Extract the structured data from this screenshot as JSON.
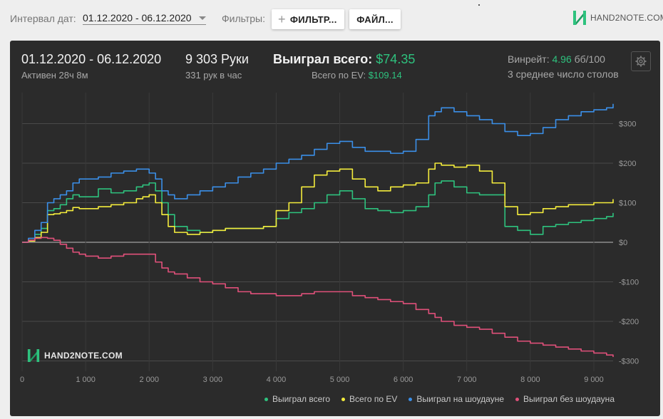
{
  "header": {
    "date_range_label": "Интервал дат:",
    "date_range_value": "01.12.2020 - 06.12.2020",
    "filters_label": "Фильтры:",
    "filter_button": "ФИЛЬТР...",
    "file_button": "ФАЙЛ...",
    "logo_text": "HAND2NOTE.COM"
  },
  "summary": {
    "date_range": "01.12.2020 - 06.12.2020",
    "active": "Активен 28ч 8м",
    "hands": "9 303 Руки",
    "hands_per_hour": "331 рук в час",
    "won_total_label": "Выиграл всего:",
    "won_total_value": "$74.35",
    "ev_label": "Всего по EV:",
    "ev_value": "$109.14",
    "winrate_label": "Винрейт:",
    "winrate_value": "4.96",
    "winrate_unit": "бб/100",
    "tables": "3 среднее число столов"
  },
  "watermark": "HAND2NOTE.COM",
  "chart_data": {
    "type": "line",
    "xlabel": "",
    "ylabel": "",
    "xlim": [
      0,
      9303
    ],
    "ylim": [
      -300,
      350
    ],
    "x_ticks": [
      0,
      1000,
      2000,
      3000,
      4000,
      5000,
      6000,
      7000,
      8000,
      9000
    ],
    "x_tick_labels": [
      "0",
      "1 000",
      "2 000",
      "3 000",
      "4 000",
      "5 000",
      "6 000",
      "7 000",
      "8 000",
      "9 000"
    ],
    "y_ticks": [
      300,
      200,
      100,
      0,
      -100,
      -200,
      -300
    ],
    "y_tick_labels": [
      "$300",
      "$200",
      "$100",
      "$0",
      "-$100",
      "-$200",
      "-$300"
    ],
    "legend_position": "bottom-right",
    "grid": true,
    "x": [
      0,
      100,
      200,
      300,
      400,
      500,
      600,
      700,
      800,
      900,
      1000,
      1200,
      1400,
      1600,
      1800,
      1900,
      2000,
      2100,
      2200,
      2300,
      2400,
      2600,
      2800,
      3000,
      3200,
      3400,
      3600,
      3800,
      4000,
      4200,
      4400,
      4600,
      4800,
      5000,
      5200,
      5400,
      5600,
      5800,
      6000,
      6200,
      6400,
      6500,
      6600,
      6800,
      7000,
      7200,
      7400,
      7600,
      7800,
      8000,
      8200,
      8400,
      8600,
      8800,
      9000,
      9200,
      9303
    ],
    "series": [
      {
        "name": "Выиграл всего",
        "color": "#2ec27e",
        "values": [
          0,
          5,
          20,
          35,
          80,
          85,
          95,
          110,
          120,
          115,
          115,
          135,
          125,
          130,
          140,
          145,
          150,
          130,
          100,
          70,
          40,
          30,
          25,
          30,
          35,
          35,
          35,
          40,
          60,
          75,
          85,
          100,
          120,
          130,
          110,
          85,
          80,
          75,
          80,
          90,
          120,
          150,
          155,
          140,
          125,
          120,
          120,
          40,
          30,
          20,
          40,
          45,
          50,
          55,
          60,
          65,
          74
        ]
      },
      {
        "name": "Всего по EV",
        "color": "#f4ec3c",
        "values": [
          0,
          3,
          12,
          25,
          70,
          72,
          75,
          80,
          88,
          85,
          85,
          90,
          95,
          100,
          110,
          115,
          120,
          100,
          70,
          40,
          25,
          20,
          25,
          30,
          35,
          35,
          35,
          40,
          80,
          100,
          140,
          170,
          180,
          185,
          160,
          140,
          130,
          140,
          145,
          150,
          185,
          200,
          195,
          190,
          195,
          180,
          150,
          90,
          70,
          75,
          85,
          90,
          95,
          95,
          100,
          100,
          109
        ]
      },
      {
        "name": "Выиграл на шоудауне",
        "color": "#3b8fe8",
        "values": [
          0,
          10,
          30,
          50,
          100,
          110,
          120,
          130,
          150,
          160,
          160,
          165,
          175,
          180,
          185,
          185,
          175,
          160,
          130,
          120,
          110,
          120,
          130,
          140,
          150,
          165,
          175,
          185,
          200,
          210,
          220,
          235,
          250,
          255,
          240,
          230,
          230,
          225,
          230,
          260,
          320,
          330,
          340,
          330,
          320,
          310,
          300,
          280,
          270,
          275,
          290,
          310,
          320,
          330,
          335,
          340,
          350
        ]
      },
      {
        "name": "Выиграл без шоудауна",
        "color": "#e0507a",
        "values": [
          0,
          5,
          10,
          12,
          10,
          5,
          -5,
          -15,
          -25,
          -30,
          -35,
          -40,
          -35,
          -30,
          -30,
          -30,
          -30,
          -50,
          -65,
          -75,
          -80,
          -90,
          -100,
          -105,
          -115,
          -125,
          -130,
          -130,
          -135,
          -135,
          -130,
          -125,
          -125,
          -125,
          -135,
          -140,
          -145,
          -150,
          -155,
          -170,
          -180,
          -190,
          -200,
          -210,
          -215,
          -220,
          -230,
          -240,
          -250,
          -255,
          -260,
          -265,
          -270,
          -275,
          -280,
          -285,
          -290
        ]
      }
    ]
  }
}
